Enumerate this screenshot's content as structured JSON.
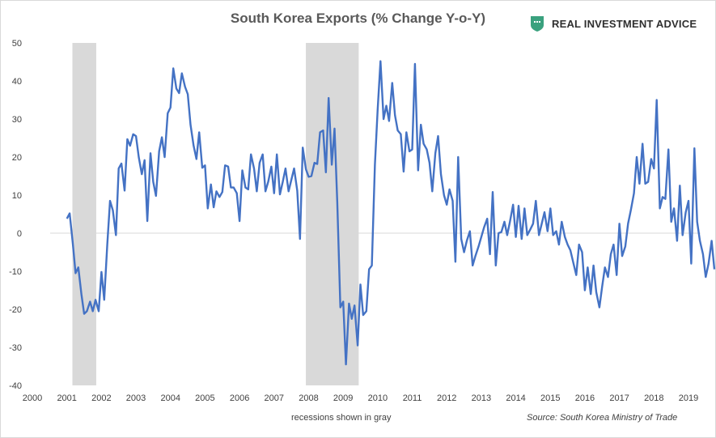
{
  "chart_data": {
    "type": "line",
    "title": "South Korea Exports (% Change Y-o-Y)",
    "xlabel": "",
    "ylabel": "",
    "xlim": [
      2000,
      2019.5
    ],
    "ylim": [
      -40,
      50
    ],
    "yticks": [
      50,
      40,
      30,
      20,
      10,
      0,
      -10,
      -20,
      -30,
      -40
    ],
    "xticks": [
      "2000",
      "2001",
      "2002",
      "2003",
      "2004",
      "2005",
      "2006",
      "2007",
      "2008",
      "2009",
      "2010",
      "2011",
      "2012",
      "2013",
      "2014",
      "2015",
      "2016",
      "2017",
      "2018",
      "2019"
    ],
    "grid": false,
    "recessions": [
      {
        "start": 2001.16,
        "end": 2001.85
      },
      {
        "start": 2007.92,
        "end": 2009.45
      }
    ],
    "series": [
      {
        "name": "South Korea Exports YoY %",
        "color": "#4472c4",
        "points": [
          [
            2001.0,
            3.8
          ],
          [
            2001.08,
            5.2
          ],
          [
            2001.17,
            -2.5
          ],
          [
            2001.25,
            -10.5
          ],
          [
            2001.33,
            -9.0
          ],
          [
            2001.42,
            -16.0
          ],
          [
            2001.5,
            -21.2
          ],
          [
            2001.58,
            -20.5
          ],
          [
            2001.67,
            -18.0
          ],
          [
            2001.75,
            -20.5
          ],
          [
            2001.83,
            -17.5
          ],
          [
            2001.92,
            -20.5
          ],
          [
            2002.0,
            -10.2
          ],
          [
            2002.08,
            -17.5
          ],
          [
            2002.17,
            -3.0
          ],
          [
            2002.25,
            8.5
          ],
          [
            2002.33,
            6.0
          ],
          [
            2002.42,
            -0.5
          ],
          [
            2002.5,
            17.0
          ],
          [
            2002.58,
            18.3
          ],
          [
            2002.67,
            11.2
          ],
          [
            2002.75,
            24.7
          ],
          [
            2002.83,
            23.0
          ],
          [
            2002.92,
            26.0
          ],
          [
            2003.0,
            25.5
          ],
          [
            2003.08,
            20.0
          ],
          [
            2003.17,
            15.5
          ],
          [
            2003.25,
            19.2
          ],
          [
            2003.33,
            3.2
          ],
          [
            2003.42,
            21.0
          ],
          [
            2003.5,
            13.5
          ],
          [
            2003.58,
            9.8
          ],
          [
            2003.67,
            21.5
          ],
          [
            2003.75,
            25.2
          ],
          [
            2003.83,
            20.0
          ],
          [
            2003.92,
            31.5
          ],
          [
            2004.0,
            33.0
          ],
          [
            2004.08,
            43.3
          ],
          [
            2004.17,
            38.0
          ],
          [
            2004.25,
            36.8
          ],
          [
            2004.33,
            42.0
          ],
          [
            2004.42,
            38.5
          ],
          [
            2004.5,
            36.5
          ],
          [
            2004.58,
            28.5
          ],
          [
            2004.67,
            23.0
          ],
          [
            2004.75,
            19.5
          ],
          [
            2004.83,
            26.5
          ],
          [
            2004.92,
            17.2
          ],
          [
            2005.0,
            17.8
          ],
          [
            2005.08,
            6.5
          ],
          [
            2005.17,
            12.8
          ],
          [
            2005.25,
            6.8
          ],
          [
            2005.33,
            11.0
          ],
          [
            2005.42,
            9.5
          ],
          [
            2005.5,
            10.8
          ],
          [
            2005.58,
            17.8
          ],
          [
            2005.67,
            17.5
          ],
          [
            2005.75,
            12.0
          ],
          [
            2005.83,
            12.0
          ],
          [
            2005.92,
            10.5
          ],
          [
            2006.0,
            3.2
          ],
          [
            2006.08,
            16.5
          ],
          [
            2006.17,
            12.0
          ],
          [
            2006.25,
            11.5
          ],
          [
            2006.33,
            20.7
          ],
          [
            2006.42,
            17.0
          ],
          [
            2006.5,
            11.0
          ],
          [
            2006.58,
            18.5
          ],
          [
            2006.67,
            20.7
          ],
          [
            2006.75,
            11.0
          ],
          [
            2006.83,
            13.5
          ],
          [
            2006.92,
            17.5
          ],
          [
            2007.0,
            10.5
          ],
          [
            2007.08,
            20.7
          ],
          [
            2007.17,
            10.2
          ],
          [
            2007.25,
            13.5
          ],
          [
            2007.33,
            17.0
          ],
          [
            2007.42,
            11.0
          ],
          [
            2007.5,
            14.0
          ],
          [
            2007.58,
            17.0
          ],
          [
            2007.67,
            11.2
          ],
          [
            2007.75,
            -1.5
          ],
          [
            2007.83,
            22.5
          ],
          [
            2007.92,
            16.8
          ],
          [
            2008.0,
            14.8
          ],
          [
            2008.08,
            15.0
          ],
          [
            2008.17,
            18.5
          ],
          [
            2008.25,
            18.2
          ],
          [
            2008.33,
            26.5
          ],
          [
            2008.42,
            27.0
          ],
          [
            2008.5,
            16.0
          ],
          [
            2008.58,
            35.5
          ],
          [
            2008.67,
            18.0
          ],
          [
            2008.75,
            27.5
          ],
          [
            2008.83,
            8.0
          ],
          [
            2008.92,
            -19.5
          ],
          [
            2009.0,
            -18.0
          ],
          [
            2009.08,
            -34.5
          ],
          [
            2009.17,
            -18.5
          ],
          [
            2009.25,
            -22.5
          ],
          [
            2009.33,
            -19.0
          ],
          [
            2009.42,
            -29.5
          ],
          [
            2009.5,
            -13.5
          ],
          [
            2009.58,
            -21.5
          ],
          [
            2009.67,
            -20.5
          ],
          [
            2009.75,
            -9.5
          ],
          [
            2009.83,
            -8.5
          ],
          [
            2009.92,
            18.0
          ],
          [
            2010.0,
            32.5
          ],
          [
            2010.08,
            45.2
          ],
          [
            2010.17,
            30.0
          ],
          [
            2010.25,
            33.5
          ],
          [
            2010.33,
            29.5
          ],
          [
            2010.42,
            39.5
          ],
          [
            2010.5,
            31.0
          ],
          [
            2010.58,
            27.0
          ],
          [
            2010.67,
            26.0
          ],
          [
            2010.75,
            16.2
          ],
          [
            2010.83,
            26.5
          ],
          [
            2010.92,
            21.5
          ],
          [
            2011.0,
            22.0
          ],
          [
            2011.08,
            44.5
          ],
          [
            2011.17,
            16.5
          ],
          [
            2011.25,
            28.5
          ],
          [
            2011.33,
            23.5
          ],
          [
            2011.42,
            22.0
          ],
          [
            2011.5,
            18.5
          ],
          [
            2011.58,
            11.0
          ],
          [
            2011.67,
            21.0
          ],
          [
            2011.75,
            25.5
          ],
          [
            2011.83,
            15.5
          ],
          [
            2011.92,
            10.0
          ],
          [
            2012.0,
            7.5
          ],
          [
            2012.08,
            11.5
          ],
          [
            2012.17,
            8.5
          ],
          [
            2012.25,
            -7.5
          ],
          [
            2012.33,
            20.0
          ],
          [
            2012.42,
            -1.5
          ],
          [
            2012.5,
            -5.0
          ],
          [
            2012.58,
            -2.0
          ],
          [
            2012.67,
            0.5
          ],
          [
            2012.75,
            -8.5
          ],
          [
            2012.83,
            -6.0
          ],
          [
            2012.92,
            -3.5
          ],
          [
            2013.0,
            -1.0
          ],
          [
            2013.08,
            1.5
          ],
          [
            2013.17,
            3.8
          ],
          [
            2013.25,
            -5.5
          ],
          [
            2013.33,
            10.8
          ],
          [
            2013.42,
            -8.5
          ],
          [
            2013.5,
            0.0
          ],
          [
            2013.58,
            0.3
          ],
          [
            2013.67,
            3.0
          ],
          [
            2013.75,
            -0.5
          ],
          [
            2013.83,
            3.0
          ],
          [
            2013.92,
            7.5
          ],
          [
            2014.0,
            -1.0
          ],
          [
            2014.08,
            7.2
          ],
          [
            2014.17,
            -1.5
          ],
          [
            2014.25,
            6.5
          ],
          [
            2014.33,
            -0.5
          ],
          [
            2014.42,
            1.0
          ],
          [
            2014.5,
            2.5
          ],
          [
            2014.58,
            8.5
          ],
          [
            2014.67,
            -0.5
          ],
          [
            2014.75,
            2.5
          ],
          [
            2014.83,
            5.5
          ],
          [
            2014.92,
            0.5
          ],
          [
            2015.0,
            6.5
          ],
          [
            2015.08,
            -0.5
          ],
          [
            2015.17,
            0.5
          ],
          [
            2015.25,
            -3.0
          ],
          [
            2015.33,
            3.0
          ],
          [
            2015.42,
            -1.0
          ],
          [
            2015.5,
            -3.0
          ],
          [
            2015.58,
            -4.5
          ],
          [
            2015.67,
            -8.0
          ],
          [
            2015.75,
            -11.0
          ],
          [
            2015.83,
            -3.0
          ],
          [
            2015.92,
            -5.0
          ],
          [
            2016.0,
            -15.0
          ],
          [
            2016.08,
            -9.0
          ],
          [
            2016.17,
            -16.0
          ],
          [
            2016.25,
            -8.5
          ],
          [
            2016.33,
            -15.5
          ],
          [
            2016.42,
            -19.5
          ],
          [
            2016.5,
            -14.0
          ],
          [
            2016.58,
            -9.0
          ],
          [
            2016.67,
            -11.5
          ],
          [
            2016.75,
            -5.5
          ],
          [
            2016.83,
            -3.0
          ],
          [
            2016.92,
            -11.0
          ],
          [
            2017.0,
            2.5
          ],
          [
            2017.08,
            -6.0
          ],
          [
            2017.17,
            -3.5
          ],
          [
            2017.25,
            2.5
          ],
          [
            2017.33,
            6.0
          ],
          [
            2017.42,
            10.5
          ],
          [
            2017.5,
            20.0
          ],
          [
            2017.58,
            13.0
          ],
          [
            2017.67,
            23.5
          ],
          [
            2017.75,
            13.0
          ],
          [
            2017.83,
            13.5
          ],
          [
            2017.92,
            19.5
          ],
          [
            2018.0,
            17.0
          ],
          [
            2018.08,
            35.0
          ],
          [
            2018.17,
            6.5
          ],
          [
            2018.25,
            9.5
          ],
          [
            2018.33,
            9.0
          ],
          [
            2018.42,
            22.0
          ],
          [
            2018.5,
            3.0
          ],
          [
            2018.58,
            6.5
          ],
          [
            2018.67,
            -2.0
          ],
          [
            2018.75,
            12.5
          ],
          [
            2018.83,
            -0.5
          ],
          [
            2018.92,
            5.5
          ],
          [
            2019.0,
            8.5
          ],
          [
            2019.08,
            -8.0
          ],
          [
            2019.17,
            22.3
          ],
          [
            2019.25,
            3.0
          ],
          [
            2019.33,
            -2.0
          ],
          [
            2019.42,
            -5.5
          ],
          [
            2019.5,
            -11.5
          ],
          [
            2019.58,
            -8.0
          ],
          [
            2019.67,
            -2.0
          ],
          [
            2019.75,
            -9.5
          ]
        ]
      }
    ]
  },
  "brand": {
    "name": "REAL INVESTMENT ADVICE",
    "logo_color": "#3aa17e"
  },
  "note": "recessions shown in gray",
  "source": "Source: South Korea Ministry of Trade"
}
